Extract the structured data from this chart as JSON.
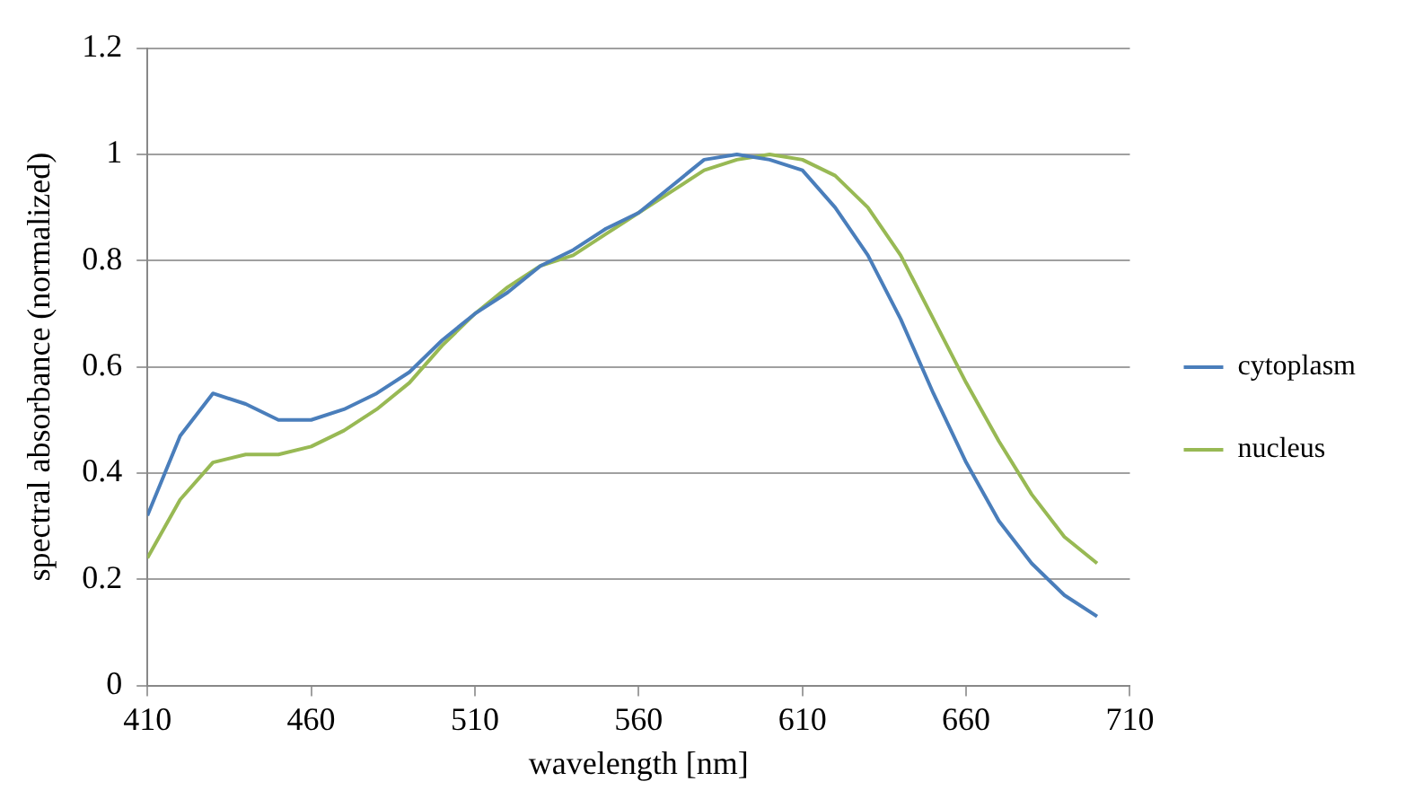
{
  "chart_data": {
    "type": "line",
    "xlabel": "wavelength [nm]",
    "ylabel": "spectral absorbance (normalized)",
    "x": [
      410,
      420,
      430,
      440,
      450,
      460,
      470,
      480,
      490,
      500,
      510,
      520,
      530,
      540,
      550,
      560,
      570,
      580,
      590,
      600,
      610,
      620,
      630,
      640,
      650,
      660,
      670,
      680,
      690,
      700
    ],
    "series": [
      {
        "name": "cytoplasm",
        "color": "#4a7ebb",
        "values": [
          0.32,
          0.47,
          0.55,
          0.53,
          0.5,
          0.5,
          0.52,
          0.55,
          0.59,
          0.65,
          0.7,
          0.74,
          0.79,
          0.82,
          0.86,
          0.89,
          0.94,
          0.99,
          1.0,
          0.99,
          0.97,
          0.9,
          0.81,
          0.69,
          0.55,
          0.42,
          0.31,
          0.23,
          0.17,
          0.13
        ]
      },
      {
        "name": "nucleus",
        "color": "#98b954",
        "values": [
          0.24,
          0.35,
          0.42,
          0.435,
          0.435,
          0.45,
          0.48,
          0.52,
          0.57,
          0.64,
          0.7,
          0.75,
          0.79,
          0.81,
          0.85,
          0.89,
          0.93,
          0.97,
          0.99,
          1.0,
          0.99,
          0.96,
          0.9,
          0.81,
          0.69,
          0.57,
          0.46,
          0.36,
          0.28,
          0.23
        ]
      }
    ],
    "xlim": [
      410,
      710
    ],
    "xticks": [
      410,
      460,
      510,
      560,
      610,
      660,
      710
    ],
    "ylim": [
      0,
      1.2
    ],
    "yticks": [
      0,
      0.2,
      0.4,
      0.6,
      0.8,
      1,
      1.2
    ],
    "grid": "y",
    "legend": "right",
    "marker": "none",
    "line_style": "solid"
  }
}
